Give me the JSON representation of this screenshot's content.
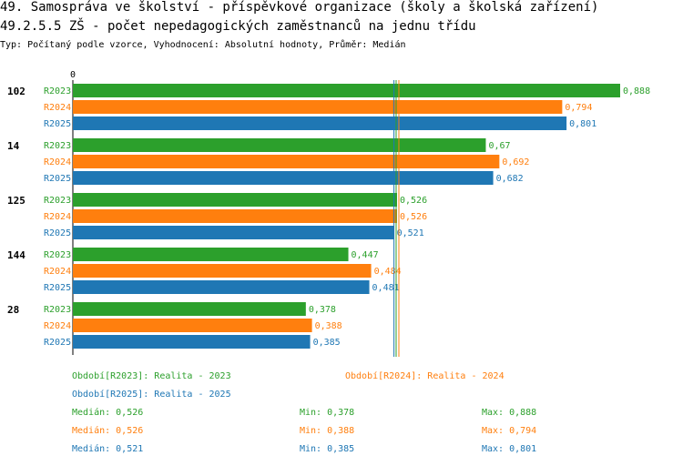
{
  "title_line1": "49. Samospráva ve školství - příspěvkové organizace (školy a školská zařízení)",
  "title_line2": "49.2.5.5 ZŠ - počet nepedagogických zaměstnanců na jednu třídu",
  "subtitle": "Typ: Počítaný podle vzorce, Vyhodnocení: Absolutní hodnoty, Průměr: Medián",
  "colors": {
    "R2023": "#2ca02c",
    "R2024": "#ff7f0e",
    "R2025": "#1f77b4"
  },
  "chart_data": {
    "type": "bar",
    "orientation": "horizontal",
    "axis_zero_label": "0",
    "categories": [
      "102",
      "14",
      "125",
      "144",
      "28"
    ],
    "series": [
      {
        "name": "R2023",
        "values": [
          0.888,
          0.67,
          0.526,
          0.447,
          0.378
        ],
        "labels": [
          "0,888",
          "0,67",
          "0,526",
          "0,447",
          "0,378"
        ]
      },
      {
        "name": "R2024",
        "values": [
          0.794,
          0.692,
          0.526,
          0.484,
          0.388
        ],
        "labels": [
          "0,794",
          "0,692",
          "0,526",
          "0,484",
          "0,388"
        ]
      },
      {
        "name": "R2025",
        "values": [
          0.801,
          0.682,
          0.521,
          0.481,
          0.385
        ],
        "labels": [
          "0,801",
          "0,682",
          "0,521",
          "0,481",
          "0,385"
        ]
      }
    ],
    "median_lines": [
      0.526,
      0.526,
      0.521
    ],
    "xlim": [
      0,
      0.888
    ]
  },
  "legend": {
    "r2023": "Období[R2023]: Realita - 2023",
    "r2024": "Období[R2024]: Realita - 2024",
    "r2025": "Období[R2025]: Realita - 2025"
  },
  "stats": [
    {
      "median": "Medián: 0,526",
      "min": "Min: 0,378",
      "max": "Max: 0,888"
    },
    {
      "median": "Medián: 0,526",
      "min": "Min: 0,388",
      "max": "Max: 0,794"
    },
    {
      "median": "Medián: 0,521",
      "min": "Min: 0,385",
      "max": "Max: 0,801"
    }
  ]
}
